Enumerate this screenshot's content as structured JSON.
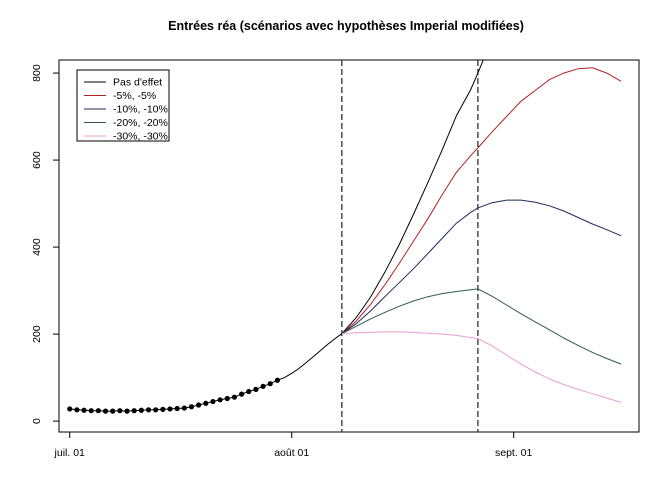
{
  "chart_data": {
    "type": "line",
    "title": "Entrées réa (scénarios avec hypothèses Imperial modifiées)",
    "xlabel": "",
    "ylabel": "",
    "x_ticks": [
      {
        "day": 0,
        "label": "juil. 01"
      },
      {
        "day": 31,
        "label": "août 01"
      },
      {
        "day": 62,
        "label": "sept. 01"
      }
    ],
    "xlim": [
      -1.5,
      79.5
    ],
    "ylim": [
      -25,
      830
    ],
    "y_ticks": [
      0,
      200,
      400,
      600,
      800
    ],
    "grid": false,
    "legend_position": "top-left",
    "vlines": [
      38,
      57
    ],
    "observed": {
      "x": [
        0,
        1,
        2,
        3,
        4,
        5,
        6,
        7,
        8,
        9,
        10,
        11,
        12,
        13,
        14,
        15,
        16,
        17,
        18,
        19,
        20,
        21,
        22,
        23,
        24,
        25,
        26,
        27,
        28,
        29
      ],
      "y": [
        28,
        26,
        25,
        24,
        24,
        23,
        23,
        24,
        23,
        24,
        25,
        26,
        26,
        27,
        28,
        29,
        30,
        33,
        37,
        41,
        45,
        49,
        52,
        55,
        62,
        68,
        73,
        80,
        86,
        94
      ]
    },
    "fitted": {
      "x": [
        29,
        30,
        31,
        32,
        33,
        34,
        35,
        36,
        37,
        38
      ],
      "y": [
        94,
        100,
        110,
        121,
        134,
        148,
        162,
        176,
        189,
        201
      ]
    },
    "series": [
      {
        "name": "Pas d'effet",
        "color": "#000000",
        "x": [
          38,
          40,
          42,
          44,
          46,
          48,
          50,
          52,
          54,
          56,
          57,
          58
        ],
        "y": [
          201,
          238,
          285,
          342,
          405,
          475,
          548,
          623,
          702,
          762,
          800,
          840
        ]
      },
      {
        "name": "-5%, -5%",
        "color": "#b22222",
        "x": [
          38,
          40,
          42,
          44,
          46,
          48,
          50,
          52,
          54,
          56,
          57,
          59,
          61,
          63,
          65,
          67,
          69,
          71,
          73,
          75,
          77
        ],
        "y": [
          201,
          230,
          268,
          313,
          362,
          413,
          465,
          520,
          572,
          610,
          628,
          665,
          700,
          735,
          760,
          785,
          800,
          810,
          812,
          800,
          781
        ]
      },
      {
        "name": "-10%, -10%",
        "color": "#1f2a5e",
        "x": [
          38,
          40,
          42,
          44,
          46,
          48,
          50,
          52,
          54,
          56,
          57,
          59,
          61,
          63,
          65,
          67,
          69,
          71,
          73,
          75,
          77
        ],
        "y": [
          201,
          224,
          253,
          286,
          318,
          350,
          385,
          420,
          455,
          480,
          490,
          502,
          508,
          508,
          503,
          495,
          483,
          468,
          453,
          440,
          426
        ]
      },
      {
        "name": "-20%, -20%",
        "color": "#2f5d50",
        "x": [
          38,
          40,
          42,
          44,
          46,
          48,
          50,
          52,
          54,
          56,
          57,
          59,
          61,
          63,
          65,
          67,
          69,
          71,
          73,
          75,
          77
        ],
        "y": [
          201,
          218,
          235,
          250,
          264,
          276,
          286,
          293,
          298,
          302,
          304,
          287,
          267,
          247,
          228,
          210,
          191,
          174,
          158,
          144,
          131
        ]
      },
      {
        "name": "-30%, -30%",
        "color": "#e8a0d0",
        "x": [
          38,
          40,
          42,
          44,
          46,
          48,
          50,
          52,
          54,
          56,
          57,
          59,
          61,
          63,
          65,
          67,
          69,
          71,
          73,
          75,
          77
        ],
        "y": [
          201,
          203,
          204,
          205,
          205,
          204,
          202,
          200,
          197,
          192,
          190,
          173,
          152,
          131,
          113,
          97,
          84,
          73,
          63,
          53,
          43
        ]
      }
    ]
  }
}
